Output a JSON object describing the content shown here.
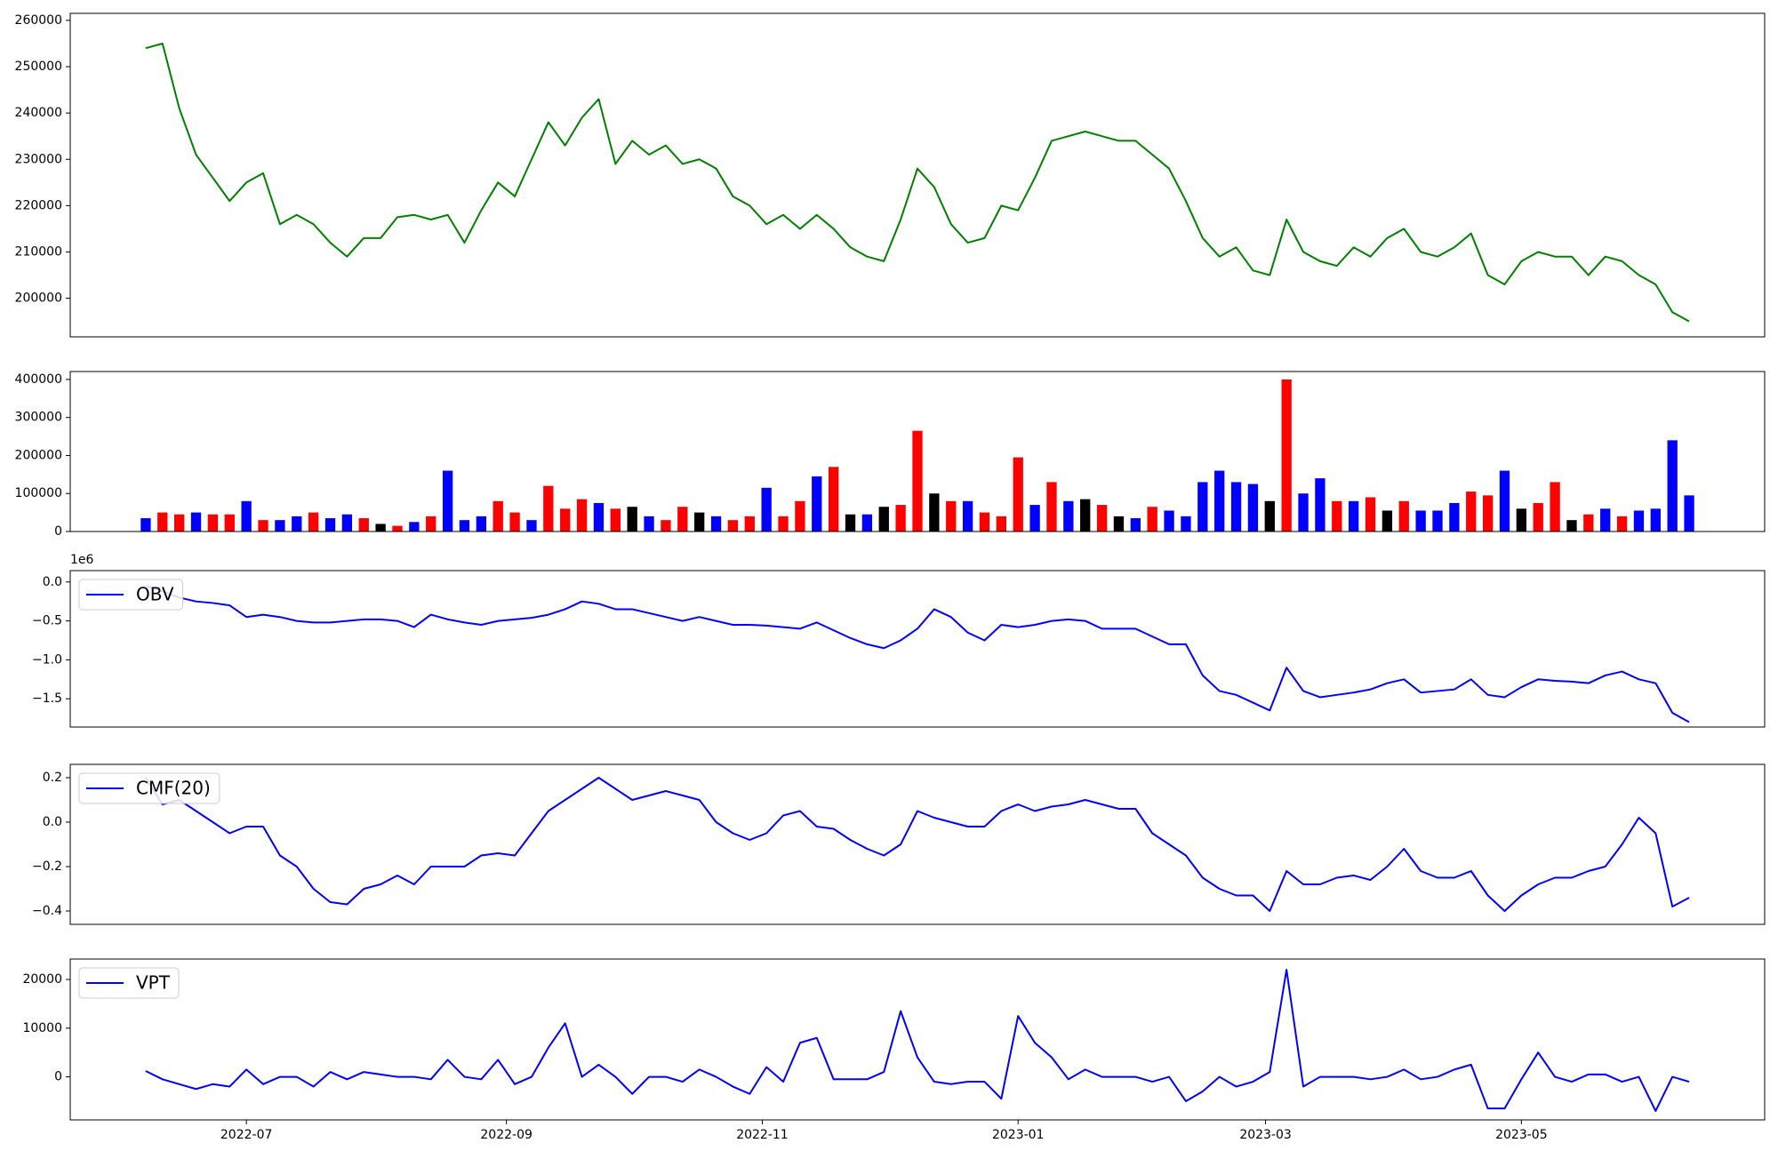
{
  "chart_data": [
    {
      "type": "line",
      "x": [
        -24,
        -20,
        -16,
        -12,
        -8,
        -4,
        0,
        4,
        8,
        12,
        16,
        20,
        24,
        28,
        32,
        36,
        40,
        44,
        48,
        52,
        56,
        60,
        64,
        68,
        72,
        76,
        80,
        84,
        88,
        92,
        96,
        100,
        104,
        108,
        112,
        116,
        120,
        124,
        128,
        132,
        136,
        140,
        144,
        148,
        152,
        156,
        160,
        164,
        168,
        172,
        176,
        180,
        184,
        188,
        192,
        196,
        200,
        204,
        208,
        212,
        216,
        220,
        224,
        228,
        232,
        236,
        240,
        244,
        248,
        252,
        256,
        260,
        264,
        268,
        272,
        276,
        280,
        284,
        288,
        292,
        296,
        300,
        304,
        308,
        312,
        316,
        320,
        324,
        328,
        332,
        336,
        340,
        344
      ],
      "series": [
        {
          "color": "#008000",
          "values": [
            254000,
            255000,
            241000,
            231000,
            226000,
            221000,
            225000,
            227000,
            216000,
            218000,
            216000,
            212000,
            209000,
            213000,
            213000,
            217500,
            218000,
            217000,
            218000,
            212000,
            219000,
            225000,
            222000,
            230000,
            238000,
            233000,
            239000,
            243000,
            229000,
            234000,
            231000,
            233000,
            229000,
            230000,
            228000,
            222000,
            220000,
            216000,
            218000,
            215000,
            218000,
            215000,
            211000,
            209000,
            208000,
            217000,
            228000,
            224000,
            216000,
            212000,
            213000,
            220000,
            219000,
            226000,
            234000,
            235000,
            236000,
            235000,
            234000,
            234000,
            231000,
            228000,
            221000,
            213000,
            209000,
            211000,
            206000,
            205000,
            217000,
            210000,
            208000,
            207000,
            211000,
            209000,
            213000,
            215000,
            210000,
            209000,
            211000,
            214000,
            205000,
            203000,
            208000,
            210000,
            209000,
            209000,
            205000,
            209000,
            208000,
            205000,
            203000,
            197000,
            195000
          ]
        }
      ],
      "xlim": [
        -42,
        362
      ],
      "ylim": [
        191670,
        261520
      ],
      "yticks": [
        200000,
        210000,
        220000,
        230000,
        240000,
        250000,
        260000
      ]
    },
    {
      "type": "bar",
      "x": [
        -24,
        -20,
        -16,
        -12,
        -8,
        -4,
        0,
        4,
        8,
        12,
        16,
        20,
        24,
        28,
        32,
        36,
        40,
        44,
        48,
        52,
        56,
        60,
        64,
        68,
        72,
        76,
        80,
        84,
        88,
        92,
        96,
        100,
        104,
        108,
        112,
        116,
        120,
        124,
        128,
        132,
        136,
        140,
        144,
        148,
        152,
        156,
        160,
        164,
        168,
        172,
        176,
        180,
        184,
        188,
        192,
        196,
        200,
        204,
        208,
        212,
        216,
        220,
        224,
        228,
        232,
        236,
        240,
        244,
        248,
        252,
        256,
        260,
        264,
        268,
        272,
        276,
        280,
        284,
        288,
        292,
        296,
        300,
        304,
        308,
        312,
        316,
        320,
        324,
        328,
        332,
        336,
        340,
        344
      ],
      "values": [
        35000,
        50000,
        45000,
        50000,
        45000,
        45000,
        80000,
        30000,
        30000,
        40000,
        50000,
        35000,
        45000,
        35000,
        20000,
        15000,
        25000,
        40000,
        160000,
        30000,
        40000,
        80000,
        50000,
        30000,
        120000,
        60000,
        85000,
        75000,
        60000,
        65000,
        40000,
        30000,
        65000,
        50000,
        40000,
        30000,
        40000,
        115000,
        40000,
        80000,
        145000,
        170000,
        45000,
        45000,
        65000,
        70000,
        265000,
        100000,
        80000,
        80000,
        50000,
        40000,
        195000,
        70000,
        130000,
        80000,
        85000,
        70000,
        40000,
        35000,
        65000,
        55000,
        40000,
        130000,
        160000,
        130000,
        125000,
        80000,
        400000,
        100000,
        140000,
        80000,
        80000,
        90000,
        55000,
        80000,
        55000,
        55000,
        75000,
        105000,
        95000,
        160000,
        60000,
        75000,
        130000,
        30000,
        45000,
        60000,
        40000,
        55000,
        60000,
        240000,
        95000
      ],
      "colors": [
        "blue",
        "red",
        "red",
        "blue",
        "red",
        "red",
        "blue",
        "red",
        "blue",
        "blue",
        "red",
        "blue",
        "blue",
        "red",
        "black",
        "red",
        "blue",
        "red",
        "blue",
        "blue",
        "blue",
        "red",
        "red",
        "blue",
        "red",
        "red",
        "red",
        "blue",
        "red",
        "black",
        "blue",
        "red",
        "red",
        "black",
        "blue",
        "red",
        "red",
        "blue",
        "red",
        "red",
        "blue",
        "red",
        "black",
        "blue",
        "black",
        "red",
        "red",
        "black",
        "red",
        "blue",
        "red",
        "red",
        "red",
        "blue",
        "red",
        "blue",
        "black",
        "red",
        "black",
        "blue",
        "red",
        "blue",
        "blue",
        "blue",
        "blue",
        "blue",
        "blue",
        "black",
        "red",
        "blue",
        "blue",
        "red",
        "blue",
        "red",
        "black",
        "red",
        "blue",
        "blue",
        "blue",
        "red",
        "red",
        "blue",
        "black",
        "red",
        "red",
        "black",
        "red",
        "blue",
        "red",
        "blue",
        "blue",
        "blue",
        "blue"
      ],
      "xlim": [
        -42,
        362
      ],
      "ylim": [
        0,
        420900
      ],
      "yticks": [
        0,
        100000,
        200000,
        300000,
        400000
      ]
    },
    {
      "type": "line",
      "x": [
        -24,
        -20,
        -16,
        -12,
        -8,
        -4,
        0,
        4,
        8,
        12,
        16,
        20,
        24,
        28,
        32,
        36,
        40,
        44,
        48,
        52,
        56,
        60,
        64,
        68,
        72,
        76,
        80,
        84,
        88,
        92,
        96,
        100,
        104,
        108,
        112,
        116,
        120,
        124,
        128,
        132,
        136,
        140,
        144,
        148,
        152,
        156,
        160,
        164,
        168,
        172,
        176,
        180,
        184,
        188,
        192,
        196,
        200,
        204,
        208,
        212,
        216,
        220,
        224,
        228,
        232,
        236,
        240,
        244,
        248,
        252,
        256,
        260,
        264,
        268,
        272,
        276,
        280,
        284,
        288,
        292,
        296,
        300,
        304,
        308,
        312,
        316,
        320,
        324,
        328,
        332,
        336,
        340,
        344
      ],
      "series": [
        {
          "name": "OBV",
          "color": "blue",
          "values": [
            -0.05,
            -0.12,
            -0.2,
            -0.25,
            -0.27,
            -0.3,
            -0.45,
            -0.42,
            -0.45,
            -0.5,
            -0.52,
            -0.52,
            -0.5,
            -0.48,
            -0.48,
            -0.5,
            -0.58,
            -0.42,
            -0.48,
            -0.52,
            -0.55,
            -0.5,
            -0.48,
            -0.46,
            -0.42,
            -0.35,
            -0.25,
            -0.28,
            -0.35,
            -0.35,
            -0.4,
            -0.45,
            -0.5,
            -0.45,
            -0.5,
            -0.55,
            -0.55,
            -0.56,
            -0.58,
            -0.6,
            -0.52,
            -0.62,
            -0.72,
            -0.8,
            -0.85,
            -0.75,
            -0.6,
            -0.35,
            -0.45,
            -0.65,
            -0.75,
            -0.55,
            -0.58,
            -0.55,
            -0.5,
            -0.48,
            -0.5,
            -0.6,
            -0.6,
            -0.6,
            -0.7,
            -0.8,
            -0.8,
            -1.2,
            -1.4,
            -1.45,
            -1.55,
            -1.65,
            -1.1,
            -1.4,
            -1.48,
            -1.45,
            -1.42,
            -1.38,
            -1.3,
            -1.25,
            -1.42,
            -1.4,
            -1.38,
            -1.25,
            -1.45,
            -1.48,
            -1.35,
            -1.25,
            -1.27,
            -1.28,
            -1.3,
            -1.2,
            -1.15,
            -1.25,
            -1.3,
            -1.68,
            -1.8
          ]
        }
      ],
      "xlim": [
        -42,
        362
      ],
      "ylim": [
        -1.863,
        0.146
      ],
      "y_offset_label": "1e6",
      "yticks": [
        {
          "value": -1.5,
          "label": "−1.5"
        },
        {
          "value": -1.0,
          "label": "−1.0"
        },
        {
          "value": -0.5,
          "label": "−0.5"
        },
        {
          "value": 0,
          "label": "0.0"
        }
      ],
      "legend": "upper left"
    },
    {
      "type": "line",
      "x": [
        -24,
        -20,
        -16,
        -12,
        -8,
        -4,
        0,
        4,
        8,
        12,
        16,
        20,
        24,
        28,
        32,
        36,
        40,
        44,
        48,
        52,
        56,
        60,
        64,
        68,
        72,
        76,
        80,
        84,
        88,
        92,
        96,
        100,
        104,
        108,
        112,
        116,
        120,
        124,
        128,
        132,
        136,
        140,
        144,
        148,
        152,
        156,
        160,
        164,
        168,
        172,
        176,
        180,
        184,
        188,
        192,
        196,
        200,
        204,
        208,
        212,
        216,
        220,
        224,
        228,
        232,
        236,
        240,
        244,
        248,
        252,
        256,
        260,
        264,
        268,
        272,
        276,
        280,
        284,
        288,
        292,
        296,
        300,
        304,
        308,
        312,
        316,
        320,
        324,
        328,
        332,
        336,
        340,
        344
      ],
      "series": [
        {
          "name": "CMF(20)",
          "color": "blue",
          "values": [
            0.2,
            0.08,
            0.1,
            0.05,
            0.0,
            -0.05,
            -0.02,
            -0.02,
            -0.15,
            -0.2,
            -0.3,
            -0.36,
            -0.37,
            -0.3,
            -0.28,
            -0.24,
            -0.28,
            -0.2,
            -0.2,
            -0.2,
            -0.15,
            -0.14,
            -0.15,
            -0.05,
            0.05,
            0.1,
            0.15,
            0.2,
            0.15,
            0.1,
            0.12,
            0.14,
            0.12,
            0.1,
            0.0,
            -0.05,
            -0.08,
            -0.05,
            0.03,
            0.05,
            -0.02,
            -0.03,
            -0.08,
            -0.12,
            -0.15,
            -0.1,
            0.05,
            0.02,
            0.0,
            -0.02,
            -0.02,
            0.05,
            0.08,
            0.05,
            0.07,
            0.08,
            0.1,
            0.08,
            0.06,
            0.06,
            -0.05,
            -0.1,
            -0.15,
            -0.25,
            -0.3,
            -0.33,
            -0.33,
            -0.4,
            -0.22,
            -0.28,
            -0.28,
            -0.25,
            -0.24,
            -0.26,
            -0.2,
            -0.12,
            -0.22,
            -0.25,
            -0.25,
            -0.22,
            -0.33,
            -0.4,
            -0.33,
            -0.28,
            -0.25,
            -0.25,
            -0.22,
            -0.2,
            -0.1,
            0.02,
            -0.05,
            -0.38,
            -0.34
          ]
        }
      ],
      "xlim": [
        -42,
        362
      ],
      "ylim": [
        -0.46,
        0.26
      ],
      "yticks": [
        {
          "value": -0.4,
          "label": "−0.4"
        },
        {
          "value": -0.2,
          "label": "−0.2"
        },
        {
          "value": 0,
          "label": "0.0"
        },
        0.2
      ],
      "legend": "upper left"
    },
    {
      "type": "line",
      "x": [
        -24,
        -20,
        -16,
        -12,
        -8,
        -4,
        0,
        4,
        8,
        12,
        16,
        20,
        24,
        28,
        32,
        36,
        40,
        44,
        48,
        52,
        56,
        60,
        64,
        68,
        72,
        76,
        80,
        84,
        88,
        92,
        96,
        100,
        104,
        108,
        112,
        116,
        120,
        124,
        128,
        132,
        136,
        140,
        144,
        148,
        152,
        156,
        160,
        164,
        168,
        172,
        176,
        180,
        184,
        188,
        192,
        196,
        200,
        204,
        208,
        212,
        216,
        220,
        224,
        228,
        232,
        236,
        240,
        244,
        248,
        252,
        256,
        260,
        264,
        268,
        272,
        276,
        280,
        284,
        288,
        292,
        296,
        300,
        304,
        308,
        312,
        316,
        320,
        324,
        328,
        332,
        336,
        340,
        344
      ],
      "series": [
        {
          "name": "VPT",
          "color": "blue",
          "values": [
            1200,
            -500,
            -1500,
            -2500,
            -1500,
            -2000,
            1500,
            -1500,
            0,
            0,
            -2000,
            1000,
            -500,
            1000,
            500,
            0,
            0,
            -500,
            3500,
            0,
            -500,
            3500,
            -1500,
            0,
            6000,
            11000,
            0,
            2500,
            0,
            -3500,
            0,
            0,
            -1000,
            1500,
            0,
            -2000,
            -3500,
            2000,
            -1000,
            7000,
            8000,
            -500,
            -500,
            -500,
            1000,
            13500,
            4000,
            -1000,
            -1500,
            -1000,
            -1000,
            -4500,
            12500,
            7000,
            4000,
            -500,
            1500,
            0,
            0,
            0,
            -1000,
            0,
            -5000,
            -3000,
            0,
            -2000,
            -1000,
            1000,
            22000,
            -2000,
            0,
            0,
            0,
            -500,
            0,
            1500,
            -500,
            0,
            1500,
            2500,
            -6500,
            -6500,
            -500,
            5000,
            0,
            -1000,
            500,
            500,
            -1000,
            0,
            -7000,
            0,
            -1000
          ]
        }
      ],
      "xlim": [
        -42,
        362
      ],
      "ylim": [
        -8840,
        24200
      ],
      "yticks": [
        0,
        10000,
        20000
      ],
      "xticks": [
        {
          "value": 0,
          "label": "2022-07"
        },
        {
          "value": 62,
          "label": "2022-09"
        },
        {
          "value": 123,
          "label": "2022-11"
        },
        {
          "value": 184,
          "label": "2023-01"
        },
        {
          "value": 243,
          "label": "2023-03"
        },
        {
          "value": 304,
          "label": "2023-05"
        }
      ],
      "legend": "upper left"
    }
  ]
}
